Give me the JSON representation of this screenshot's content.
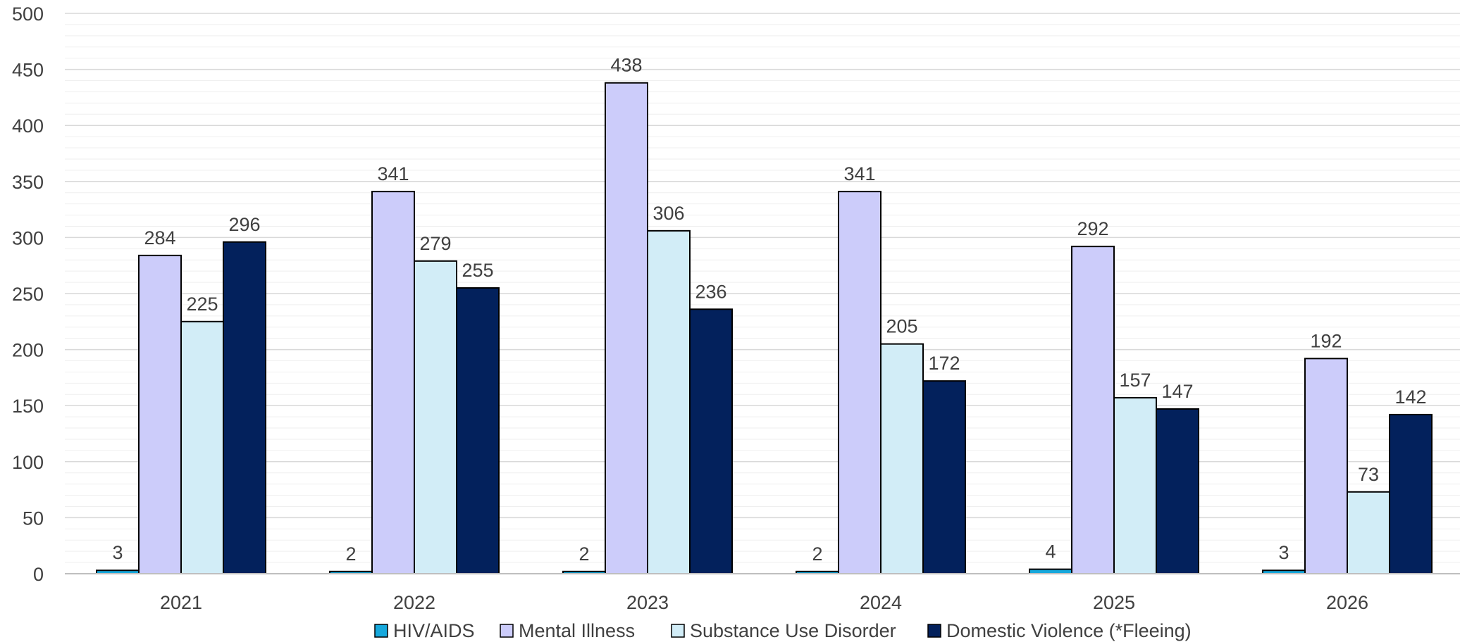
{
  "chart_data": {
    "type": "bar",
    "title": "",
    "xlabel": "",
    "ylabel": "",
    "categories": [
      "2021",
      "2022",
      "2023",
      "2024",
      "2025",
      "2026"
    ],
    "ylim": [
      0,
      500
    ],
    "yticks": [
      0,
      50,
      100,
      150,
      200,
      250,
      300,
      350,
      400,
      450,
      500
    ],
    "minor_gridlines": true,
    "legend_position": "bottom",
    "series": [
      {
        "name": "HIV/AIDS",
        "color": "#16a8dc",
        "values": [
          3,
          2,
          2,
          2,
          4,
          3
        ]
      },
      {
        "name": "Mental Illness",
        "color": "#ccccfa",
        "values": [
          284,
          341,
          438,
          341,
          292,
          192
        ]
      },
      {
        "name": "Substance Use Disorder",
        "color": "#d2edf7",
        "values": [
          225,
          279,
          306,
          205,
          157,
          73
        ]
      },
      {
        "name": "Domestic Violence (*Fleeing)",
        "color": "#03215c",
        "values": [
          296,
          255,
          236,
          172,
          147,
          142
        ]
      }
    ]
  }
}
